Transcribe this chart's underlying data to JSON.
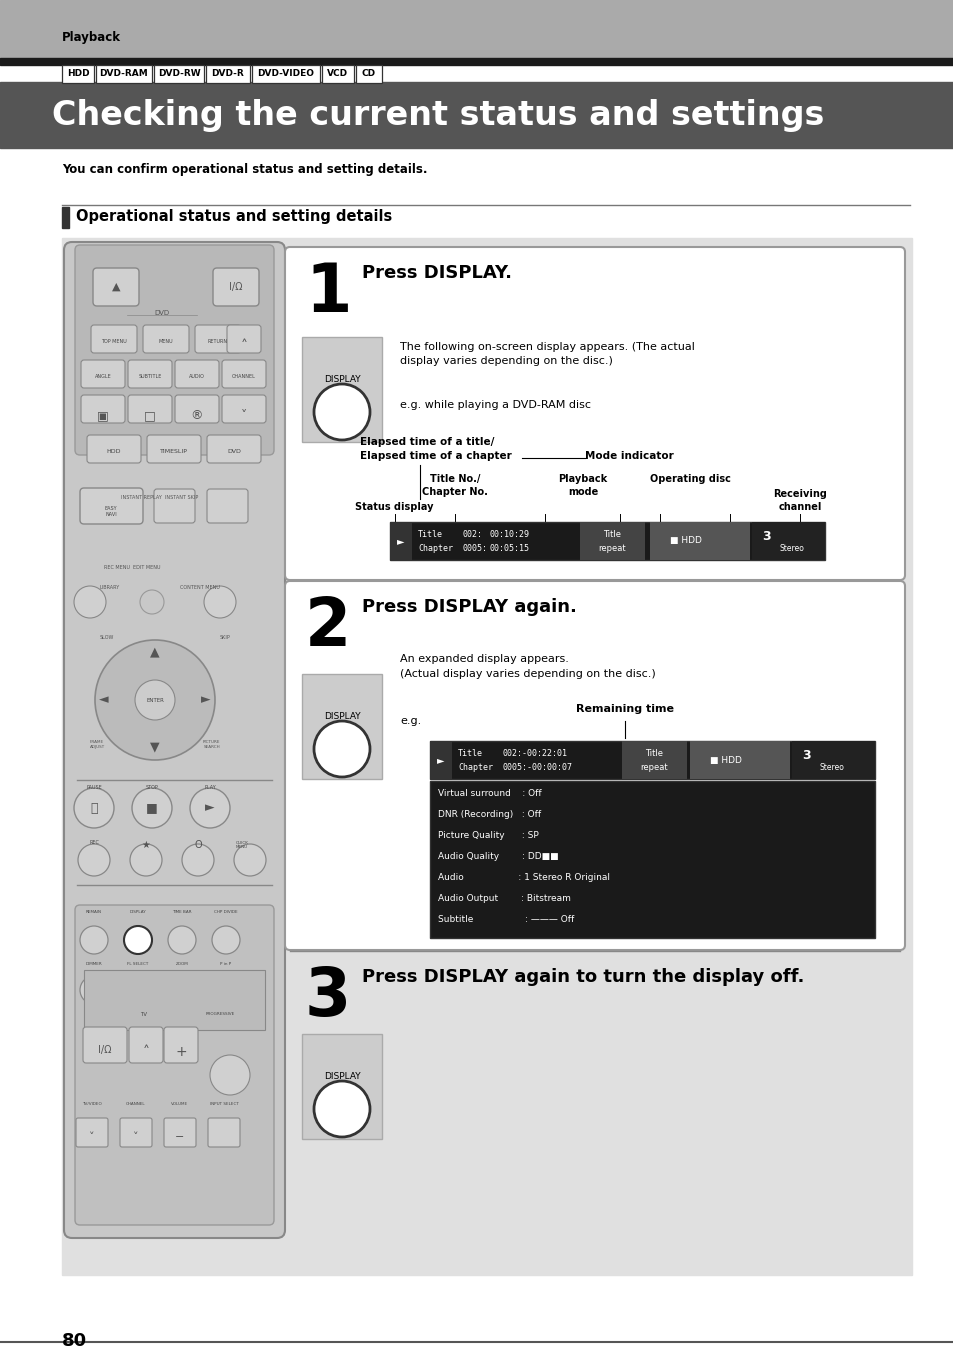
{
  "page_bg": "#ffffff",
  "top_bar_color": "#aaaaaa",
  "top_bar_text": "Playback",
  "dark_bar_color": "#1a1a1a",
  "title_text": "Checking the current status and settings",
  "title_bg": "#555555",
  "title_color": "#ffffff",
  "subtitle_text": "You can confirm operational status and setting details.",
  "section_header": "Operational status and setting details",
  "tags": [
    "HDD",
    "DVD-RAM",
    "DVD-RW",
    "DVD-R",
    "DVD-VIDEO",
    "VCD",
    "CD"
  ],
  "step1_title": "Press DISPLAY.",
  "step1_text1": "The following on-screen display appears. (The actual\ndisplay varies depending on the disc.)",
  "step1_text2": "e.g. while playing a DVD-RAM disc",
  "step1_label1": "Elapsed time of a title/",
  "step1_label1b": "Elapsed time of a chapter",
  "step1_label2": "Mode indicator",
  "step1_label3": "Title No./\nChapter No.",
  "step1_label4": "Playback\nmode",
  "step1_label5": "Operating disc",
  "step1_label6": "Receiving\nchannel",
  "step1_label7": "Status display",
  "step2_title": "Press DISPLAY again.",
  "step2_text1": "An expanded display appears.\n(Actual display varies depending on the disc.)",
  "step2_eg": "e.g.",
  "step2_label_remaining": "Remaining time",
  "step3_title": "Press DISPLAY again to turn the display off.",
  "display_label": "DISPLAY",
  "screen1_row1": " ► Title   002: 00:10:29  Title",
  "screen1_row2": "   Chapter 0005: 00:05:15  repeat",
  "screen2_row1": " ► Title   002:-00:22:01  Title",
  "screen2_row2": "   Chapter 0005:-00:00:07  repeat",
  "screen2_details": [
    "Virtual surround    : Off",
    "DNR (Recording)   : Off",
    "Picture Quality      : SP",
    "Audio Quality        : DD■■",
    "Audio                   : 1 Stereo R Original",
    "Audio Output        : Bitstream",
    "Subtitle                  : ——— Off"
  ],
  "page_number": "80"
}
